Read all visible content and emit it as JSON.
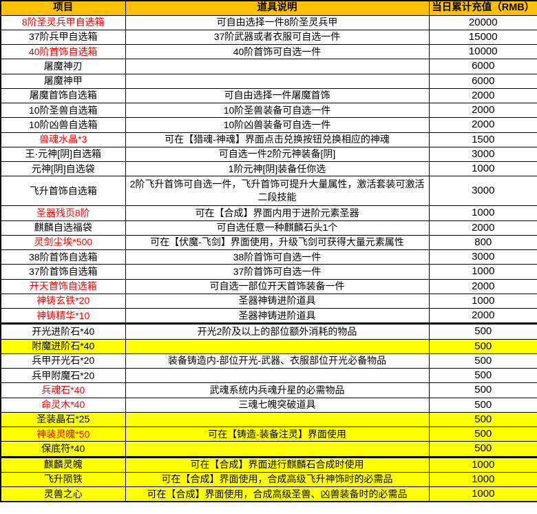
{
  "table": {
    "columns": [
      {
        "label": "项目"
      },
      {
        "label": "道具说明"
      },
      {
        "label": "当日累计充值（RMB）"
      }
    ],
    "colors": {
      "header_bg": "#FFC000",
      "highlight_row_bg": "#FFFF00",
      "alert_text": "#FF0000",
      "grid_border": "#000000"
    },
    "rows": [
      {
        "item": "8阶圣灵兵甲自选箱",
        "desc": "可自由选择一件8阶圣灵兵甲",
        "value": "20000",
        "item_red": true,
        "yellow": false,
        "thick_top": false,
        "tall": false
      },
      {
        "item": "37阶兵甲自选箱",
        "desc": "37阶武器或者衣服可自选一件",
        "value": "15000",
        "item_red": false,
        "yellow": false,
        "thick_top": false,
        "tall": false
      },
      {
        "item": "40阶首饰自选箱",
        "desc": "40阶首饰可自选一件",
        "value": "10000",
        "item_red": true,
        "yellow": false,
        "thick_top": false,
        "tall": false
      },
      {
        "item": "屠魔神刃",
        "desc": "",
        "value": "6000",
        "item_red": false,
        "yellow": false,
        "thick_top": false,
        "tall": false
      },
      {
        "item": "屠魔神甲",
        "desc": "",
        "value": "6000",
        "item_red": false,
        "yellow": false,
        "thick_top": false,
        "tall": false
      },
      {
        "item": "屠魔首饰自选箱",
        "desc": "可自由选择一件屠魔首饰",
        "value": "2000",
        "item_red": false,
        "yellow": false,
        "thick_top": false,
        "tall": false
      },
      {
        "item": "10阶圣兽自选箱",
        "desc": "10阶圣兽装备可自选一件",
        "value": "2000",
        "item_red": false,
        "yellow": false,
        "thick_top": false,
        "tall": false
      },
      {
        "item": "10阶凶兽自选箱",
        "desc": "10阶凶兽装备可自选一件",
        "value": "2000",
        "item_red": false,
        "yellow": false,
        "thick_top": false,
        "tall": false
      },
      {
        "item": "兽魂水晶*3",
        "desc": "可在【猎魂-神魂】界面点击兑换按钮兑换相应的神魂",
        "value": "1500",
        "item_red": true,
        "yellow": false,
        "thick_top": false,
        "tall": false
      },
      {
        "item": "王·元神[阴]自选箱",
        "desc": "可自选一件2阶元神装备[阴]",
        "value": "3000",
        "item_red": false,
        "yellow": false,
        "thick_top": false,
        "tall": false
      },
      {
        "item": "元神[阴]自选袋",
        "desc": "1阶元神[阴]装备任你选",
        "value": "1000",
        "item_red": false,
        "yellow": false,
        "thick_top": false,
        "tall": false
      },
      {
        "item": "飞升首饰自选箱",
        "desc": "2阶飞升首饰可自选一件，飞升首饰可提升大量属性，激活套装可激活二段技能",
        "value": "3000",
        "item_red": false,
        "yellow": false,
        "thick_top": false,
        "tall": true
      },
      {
        "item": "圣器残页8阶",
        "desc": "可在【合成】界面内用于进阶元素圣器",
        "value": "1000",
        "item_red": true,
        "yellow": false,
        "thick_top": false,
        "tall": false
      },
      {
        "item": "麒麟自选福袋",
        "desc": "可自选任意一种麒麟石头1个",
        "value": "2000",
        "item_red": false,
        "yellow": false,
        "thick_top": false,
        "tall": false
      },
      {
        "item": "灵剑尘埃*500",
        "desc": "可在【伏魔-飞剑】界面使用，升级飞剑可获得大量元素属性",
        "value": "800",
        "item_red": true,
        "yellow": false,
        "thick_top": false,
        "tall": false
      },
      {
        "item": "38阶首饰自选箱",
        "desc": "38阶首饰可自选一件",
        "value": "3000",
        "item_red": false,
        "yellow": false,
        "thick_top": false,
        "tall": false
      },
      {
        "item": "37阶首饰自选箱",
        "desc": "37阶首饰可自选一件",
        "value": "1000",
        "item_red": false,
        "yellow": false,
        "thick_top": false,
        "tall": false
      },
      {
        "item": "开天首饰自选箱",
        "desc": "可自选一部位开天首饰装备一件",
        "value": "2000",
        "item_red": true,
        "yellow": false,
        "thick_top": false,
        "tall": false
      },
      {
        "item": "神铸玄铁*20",
        "desc": "圣器神铸进阶道具",
        "value": "1000",
        "item_red": true,
        "yellow": false,
        "thick_top": false,
        "tall": false
      },
      {
        "item": "神铸精华*10",
        "desc": "圣器神铸进阶道具",
        "value": "2000",
        "item_red": true,
        "yellow": false,
        "thick_top": false,
        "tall": false
      },
      {
        "item": "开光进阶石*40",
        "desc": "开光2阶及以上的部位额外消耗的物品",
        "value": "500",
        "item_red": false,
        "yellow": false,
        "thick_top": true,
        "tall": false
      },
      {
        "item": "附魔进阶石*40",
        "desc": "",
        "value": "500",
        "item_red": false,
        "yellow": true,
        "thick_top": false,
        "tall": false
      },
      {
        "item": "兵甲开光石*20",
        "desc": "装备铸造内-部位开光-武器、衣服部位开光必备物品",
        "value": "500",
        "item_red": false,
        "yellow": false,
        "thick_top": false,
        "tall": false
      },
      {
        "item": "兵甲附魔石*20",
        "desc": "",
        "value": "500",
        "item_red": false,
        "yellow": false,
        "thick_top": false,
        "tall": false
      },
      {
        "item": "兵魂石*40",
        "desc": "武魂系统内兵魂升星的必需物品",
        "value": "500",
        "item_red": true,
        "yellow": false,
        "thick_top": false,
        "tall": false
      },
      {
        "item": "命灵木*40",
        "desc": "三魂七魄突破道具",
        "value": "500",
        "item_red": true,
        "yellow": false,
        "thick_top": false,
        "tall": false
      },
      {
        "item": "圣装晶石*25",
        "desc": "",
        "value": "500",
        "item_red": false,
        "yellow": true,
        "thick_top": false,
        "tall": false
      },
      {
        "item": "神装灵魄*50",
        "desc": "可在【铸造-装备注灵】界面使用",
        "value": "500",
        "item_red": true,
        "yellow": true,
        "thick_top": false,
        "tall": false
      },
      {
        "item": "保底符*40",
        "desc": "",
        "value": "500",
        "item_red": false,
        "yellow": true,
        "thick_top": false,
        "tall": false
      },
      {
        "item": "麒麟灵魄",
        "desc": "可在【合成】界面进行麒麟石合成时使用",
        "value": "1000",
        "item_red": false,
        "yellow": true,
        "thick_top": true,
        "tall": false
      },
      {
        "item": "飞升陨铁",
        "desc": "可在【合成】界面使用，合成高级飞升神饰时的必需品",
        "value": "1000",
        "item_red": false,
        "yellow": true,
        "thick_top": false,
        "tall": false
      },
      {
        "item": "灵兽之心",
        "desc": "可在【合成】界面使用，合成高级圣兽、凶兽装备时的必需品",
        "value": "1000",
        "item_red": false,
        "yellow": true,
        "thick_top": false,
        "tall": false
      }
    ]
  }
}
